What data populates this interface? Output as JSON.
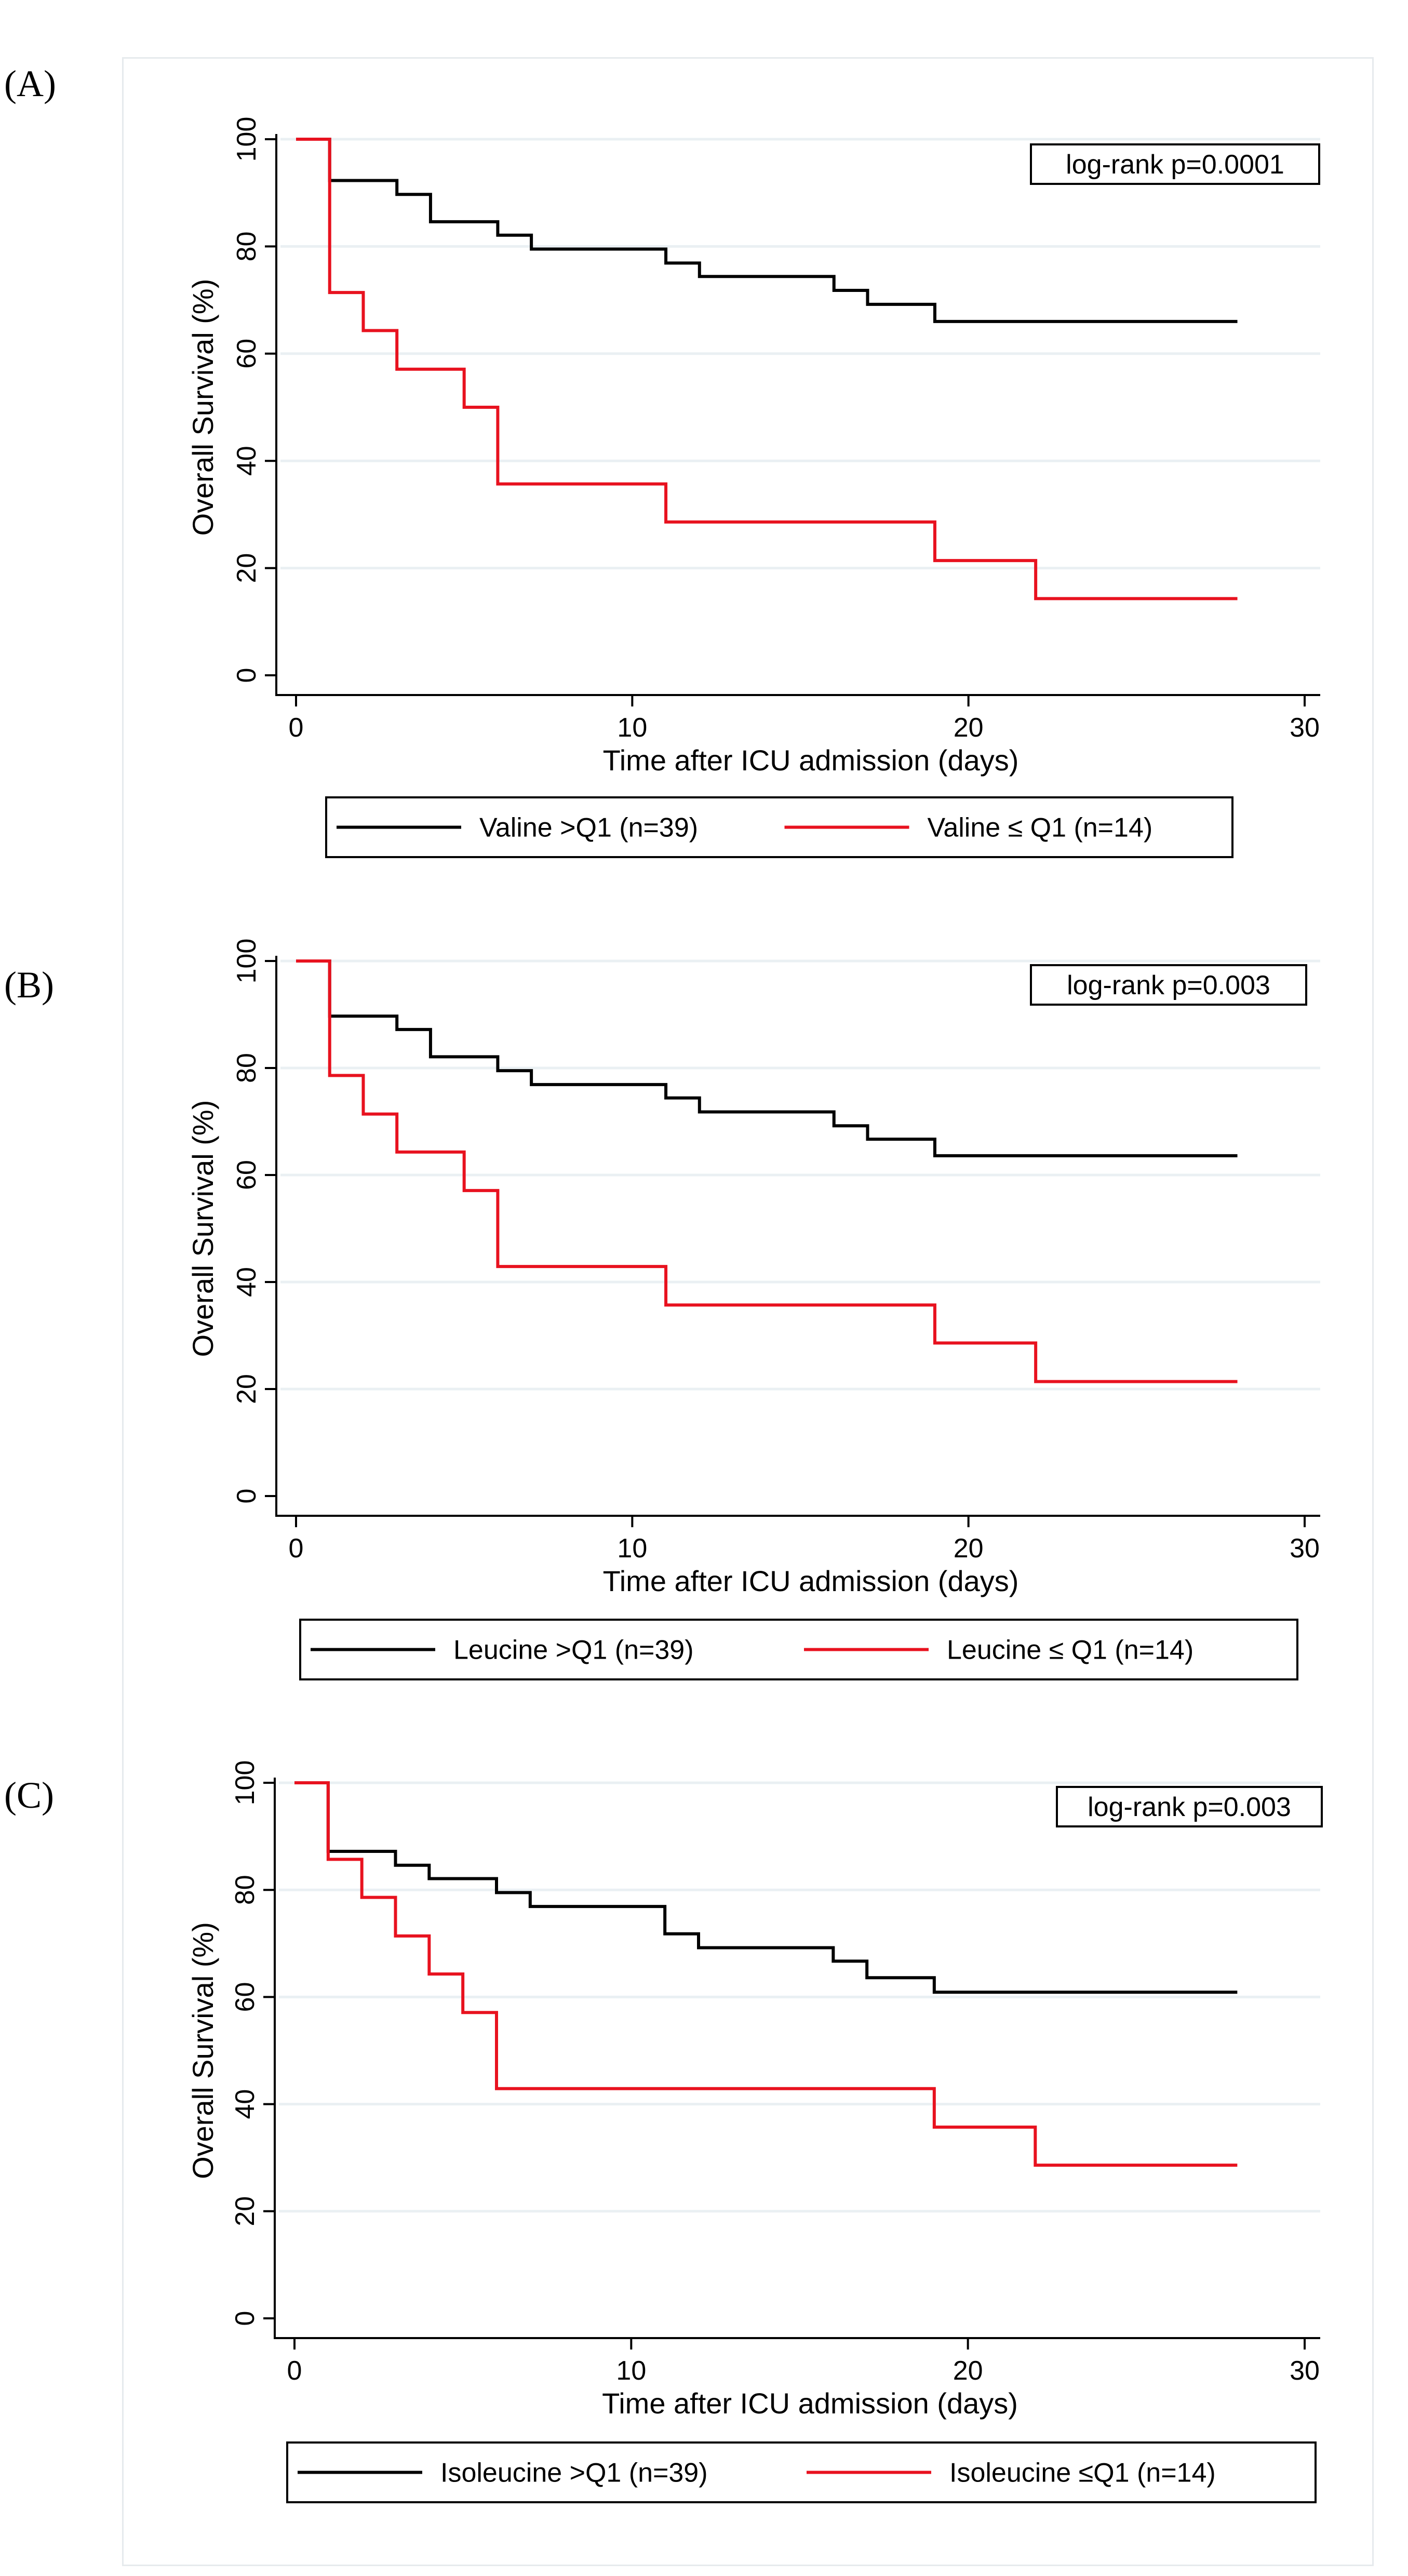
{
  "chart_data": [
    {
      "panel_label": "(A)",
      "type": "line",
      "title": "",
      "xlabel": "Time after ICU admission (days)",
      "ylabel": "Overall Survival (%)",
      "xlim": [
        0,
        30
      ],
      "ylim": [
        0,
        100
      ],
      "x_ticks": [
        "0",
        "10",
        "20",
        "30"
      ],
      "y_ticks": [
        "0",
        "20",
        "40",
        "60",
        "80",
        "100"
      ],
      "annotation": "log-rank p=0.0001",
      "series": [
        {
          "name": "Valine >Q1 (n=39)",
          "color": "#000000",
          "steps": [
            [
              0,
              100
            ],
            [
              1,
              92.3
            ],
            [
              3,
              89.7
            ],
            [
              4,
              84.6
            ],
            [
              6,
              82.1
            ],
            [
              7,
              79.5
            ],
            [
              11,
              76.9
            ],
            [
              12,
              74.4
            ],
            [
              16,
              71.8
            ],
            [
              17,
              69.2
            ],
            [
              19,
              66.0
            ]
          ],
          "end_x": 28
        },
        {
          "name": "Valine ≤ Q1 (n=14)",
          "color": "#e8121f",
          "steps": [
            [
              0,
              100
            ],
            [
              1,
              71.4
            ],
            [
              2,
              64.3
            ],
            [
              3,
              57.1
            ],
            [
              5,
              50.0
            ],
            [
              6,
              35.7
            ],
            [
              11,
              28.6
            ],
            [
              19,
              21.4
            ],
            [
              22,
              14.3
            ]
          ],
          "end_x": 28
        }
      ]
    },
    {
      "panel_label": "(B)",
      "type": "line",
      "title": "",
      "xlabel": "Time after ICU admission (days)",
      "ylabel": "Overall Survival (%)",
      "xlim": [
        0,
        30
      ],
      "ylim": [
        0,
        100
      ],
      "x_ticks": [
        "0",
        "10",
        "20",
        "30"
      ],
      "y_ticks": [
        "0",
        "20",
        "40",
        "60",
        "80",
        "100"
      ],
      "annotation": "log-rank p=0.003",
      "series": [
        {
          "name": "Leucine >Q1 (n=39)",
          "color": "#000000",
          "steps": [
            [
              0,
              100
            ],
            [
              1,
              89.7
            ],
            [
              3,
              87.2
            ],
            [
              4,
              82.1
            ],
            [
              6,
              79.5
            ],
            [
              7,
              76.9
            ],
            [
              11,
              74.4
            ],
            [
              12,
              71.8
            ],
            [
              16,
              69.2
            ],
            [
              17,
              66.7
            ],
            [
              19,
              63.6
            ]
          ],
          "end_x": 28
        },
        {
          "name": "Leucine ≤ Q1 (n=14)",
          "color": "#e8121f",
          "steps": [
            [
              0,
              100
            ],
            [
              1,
              78.6
            ],
            [
              2,
              71.4
            ],
            [
              3,
              64.3
            ],
            [
              5,
              57.1
            ],
            [
              6,
              42.9
            ],
            [
              11,
              35.7
            ],
            [
              19,
              28.6
            ],
            [
              22,
              21.4
            ]
          ],
          "end_x": 28
        }
      ]
    },
    {
      "panel_label": "(C)",
      "type": "line",
      "title": "",
      "xlabel": "Time after ICU admission (days)",
      "ylabel": "Overall Survival (%)",
      "xlim": [
        0,
        30
      ],
      "ylim": [
        0,
        100
      ],
      "x_ticks": [
        "0",
        "10",
        "20",
        "30"
      ],
      "y_ticks": [
        "0",
        "20",
        "40",
        "60",
        "80",
        "100"
      ],
      "annotation": "log-rank p=0.003",
      "series": [
        {
          "name": "Isoleucine >Q1 (n=39)",
          "color": "#000000",
          "steps": [
            [
              0,
              100
            ],
            [
              1,
              87.2
            ],
            [
              3,
              84.6
            ],
            [
              4,
              82.1
            ],
            [
              6,
              79.5
            ],
            [
              7,
              76.9
            ],
            [
              11,
              71.8
            ],
            [
              12,
              69.2
            ],
            [
              16,
              66.7
            ],
            [
              17,
              63.6
            ],
            [
              19,
              60.9
            ]
          ],
          "end_x": 28
        },
        {
          "name": "Isoleucine ≤Q1 (n=14)",
          "color": "#e8121f",
          "steps": [
            [
              0,
              100
            ],
            [
              1,
              85.7
            ],
            [
              2,
              78.6
            ],
            [
              3,
              71.4
            ],
            [
              4,
              64.3
            ],
            [
              5,
              57.1
            ],
            [
              6,
              42.9
            ],
            [
              19,
              35.7
            ],
            [
              22,
              28.6
            ]
          ],
          "end_x": 28
        }
      ]
    }
  ]
}
